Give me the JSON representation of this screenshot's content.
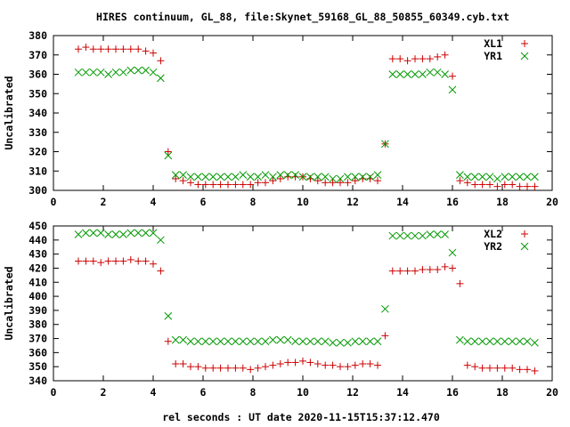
{
  "title": "HIRES continuum, GL_88, file:Skynet_59168_GL_88_50855_60349.cyb.txt",
  "xlabel": "rel seconds : UT date 2020-11-15T15:37:12.470",
  "colors": {
    "series_a": "#cc0000",
    "series_b": "#009900",
    "frame": "#000000",
    "background": "#ffffff"
  },
  "chart_data": [
    {
      "type": "scatter",
      "ylabel": "Uncalibrated",
      "xlim": [
        0,
        20
      ],
      "ylim": [
        300,
        380
      ],
      "xticks": [
        0,
        2,
        4,
        6,
        8,
        10,
        12,
        14,
        16,
        18,
        20
      ],
      "yticks": [
        300,
        310,
        320,
        330,
        340,
        350,
        360,
        370,
        380
      ],
      "legend_position": "top-right",
      "series": [
        {
          "name": "XL1",
          "marker": "plus",
          "x": [
            1.0,
            1.3,
            1.6,
            1.9,
            2.2,
            2.5,
            2.8,
            3.1,
            3.4,
            3.7,
            4.0,
            4.3,
            4.6,
            4.9,
            5.2,
            5.5,
            5.8,
            6.1,
            6.4,
            6.7,
            7.0,
            7.3,
            7.6,
            7.9,
            8.2,
            8.5,
            8.8,
            9.1,
            9.4,
            9.7,
            10.0,
            10.3,
            10.6,
            10.9,
            11.2,
            11.5,
            11.8,
            12.1,
            12.4,
            12.7,
            13.0,
            13.3,
            13.6,
            13.9,
            14.2,
            14.5,
            14.8,
            15.1,
            15.4,
            15.7,
            16.0,
            16.3,
            16.6,
            16.9,
            17.2,
            17.5,
            17.8,
            18.1,
            18.4,
            18.7,
            19.0,
            19.3
          ],
          "y": [
            373,
            374,
            373,
            373,
            373,
            373,
            373,
            373,
            373,
            372,
            371,
            367,
            320,
            306,
            305,
            304,
            303,
            303,
            303,
            303,
            303,
            303,
            303,
            303,
            304,
            304,
            305,
            306,
            307,
            307,
            307,
            306,
            305,
            304,
            304,
            304,
            304,
            305,
            306,
            306,
            305,
            324,
            368,
            368,
            367,
            368,
            368,
            368,
            369,
            370,
            359,
            305,
            304,
            303,
            303,
            303,
            302,
            303,
            303,
            302,
            302,
            302
          ]
        },
        {
          "name": "YR1",
          "marker": "cross",
          "x": [
            1.0,
            1.3,
            1.6,
            1.9,
            2.2,
            2.5,
            2.8,
            3.1,
            3.4,
            3.7,
            4.0,
            4.3,
            4.6,
            4.9,
            5.2,
            5.5,
            5.8,
            6.1,
            6.4,
            6.7,
            7.0,
            7.3,
            7.6,
            7.9,
            8.2,
            8.5,
            8.8,
            9.1,
            9.4,
            9.7,
            10.0,
            10.3,
            10.6,
            10.9,
            11.2,
            11.5,
            11.8,
            12.1,
            12.4,
            12.7,
            13.0,
            13.3,
            13.6,
            13.9,
            14.2,
            14.5,
            14.8,
            15.1,
            15.4,
            15.7,
            16.0,
            16.3,
            16.6,
            16.9,
            17.2,
            17.5,
            17.8,
            18.1,
            18.4,
            18.7,
            19.0,
            19.3
          ],
          "y": [
            361,
            361,
            361,
            361,
            360,
            361,
            361,
            362,
            362,
            362,
            361,
            358,
            318,
            308,
            308,
            307,
            307,
            307,
            307,
            307,
            307,
            307,
            308,
            307,
            307,
            308,
            307,
            308,
            308,
            308,
            307,
            307,
            307,
            307,
            306,
            306,
            307,
            307,
            307,
            307,
            308,
            324,
            360,
            360,
            360,
            360,
            360,
            361,
            361,
            360,
            352,
            308,
            307,
            307,
            307,
            307,
            306,
            307,
            307,
            307,
            307,
            307
          ]
        }
      ]
    },
    {
      "type": "scatter",
      "ylabel": "Uncalibrated",
      "xlim": [
        0,
        20
      ],
      "ylim": [
        340,
        450
      ],
      "xticks": [
        0,
        2,
        4,
        6,
        8,
        10,
        12,
        14,
        16,
        18,
        20
      ],
      "yticks": [
        340,
        350,
        360,
        370,
        380,
        390,
        400,
        410,
        420,
        430,
        440,
        450
      ],
      "legend_position": "top-right",
      "series": [
        {
          "name": "XL2",
          "marker": "plus",
          "x": [
            1.0,
            1.3,
            1.6,
            1.9,
            2.2,
            2.5,
            2.8,
            3.1,
            3.4,
            3.7,
            4.0,
            4.3,
            4.6,
            4.9,
            5.2,
            5.5,
            5.8,
            6.1,
            6.4,
            6.7,
            7.0,
            7.3,
            7.6,
            7.9,
            8.2,
            8.5,
            8.8,
            9.1,
            9.4,
            9.7,
            10.0,
            10.3,
            10.6,
            10.9,
            11.2,
            11.5,
            11.8,
            12.1,
            12.4,
            12.7,
            13.0,
            13.3,
            13.6,
            13.9,
            14.2,
            14.5,
            14.8,
            15.1,
            15.4,
            15.7,
            16.0,
            16.3,
            16.6,
            16.9,
            17.2,
            17.5,
            17.8,
            18.1,
            18.4,
            18.7,
            19.0,
            19.3
          ],
          "y": [
            425,
            425,
            425,
            424,
            425,
            425,
            425,
            426,
            425,
            425,
            423,
            418,
            368,
            352,
            352,
            350,
            350,
            349,
            349,
            349,
            349,
            349,
            349,
            348,
            349,
            350,
            351,
            352,
            353,
            353,
            354,
            353,
            352,
            351,
            351,
            350,
            350,
            351,
            352,
            352,
            351,
            372,
            418,
            418,
            418,
            418,
            419,
            419,
            419,
            421,
            420,
            409,
            351,
            350,
            349,
            349,
            349,
            349,
            349,
            348,
            348,
            347
          ]
        },
        {
          "name": "YR2",
          "marker": "cross",
          "x": [
            1.0,
            1.3,
            1.6,
            1.9,
            2.2,
            2.5,
            2.8,
            3.1,
            3.4,
            3.7,
            4.0,
            4.3,
            4.6,
            4.9,
            5.2,
            5.5,
            5.8,
            6.1,
            6.4,
            6.7,
            7.0,
            7.3,
            7.6,
            7.9,
            8.2,
            8.5,
            8.8,
            9.1,
            9.4,
            9.7,
            10.0,
            10.3,
            10.6,
            10.9,
            11.2,
            11.5,
            11.8,
            12.1,
            12.4,
            12.7,
            13.0,
            13.3,
            13.6,
            13.9,
            14.2,
            14.5,
            14.8,
            15.1,
            15.4,
            15.7,
            16.0,
            16.3,
            16.6,
            16.9,
            17.2,
            17.5,
            17.8,
            18.1,
            18.4,
            18.7,
            19.0,
            19.3
          ],
          "y": [
            444,
            445,
            445,
            445,
            444,
            444,
            444,
            445,
            445,
            445,
            445,
            440,
            386,
            369,
            369,
            368,
            368,
            368,
            368,
            368,
            368,
            368,
            368,
            368,
            368,
            368,
            369,
            369,
            369,
            368,
            368,
            368,
            368,
            368,
            367,
            367,
            367,
            368,
            368,
            368,
            368,
            391,
            443,
            443,
            443,
            443,
            443,
            444,
            444,
            444,
            431,
            369,
            368,
            368,
            368,
            368,
            368,
            368,
            368,
            368,
            368,
            367
          ]
        }
      ]
    }
  ]
}
